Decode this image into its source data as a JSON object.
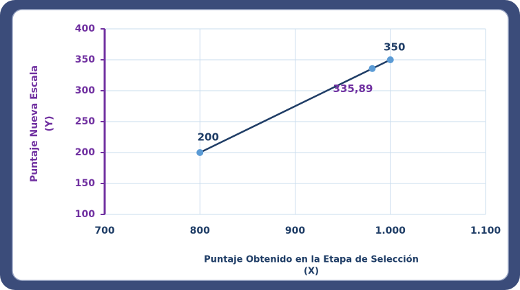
{
  "chart_data": {
    "type": "scatter",
    "xlabel": [
      "Puntaje Obtenido en la Etapa de Selección",
      "(X)"
    ],
    "ylabel": [
      "Puntaje Nueva Escala",
      "(Y)"
    ],
    "xlim": [
      700,
      1100
    ],
    "ylim": [
      100,
      400
    ],
    "xticks": [
      700,
      800,
      900,
      {
        "value": 1000,
        "label": "1.000"
      },
      {
        "value": 1100,
        "label": "1.100"
      }
    ],
    "yticks": [
      100,
      150,
      200,
      250,
      300,
      350,
      400
    ],
    "grid": true,
    "series": [
      {
        "kind": "line",
        "color": "#1f3d66",
        "x": [
          800,
          1000
        ],
        "values": [
          200,
          350
        ]
      },
      {
        "kind": "points",
        "color": "#5b9bd5",
        "x": [
          800,
          981,
          1000
        ],
        "values": [
          200,
          335.89,
          350
        ],
        "value_labels": [
          "200",
          "335,89",
          "350"
        ],
        "label_colors": [
          "#1f3d66",
          "#7030a0",
          "#1f3d66"
        ]
      }
    ]
  }
}
